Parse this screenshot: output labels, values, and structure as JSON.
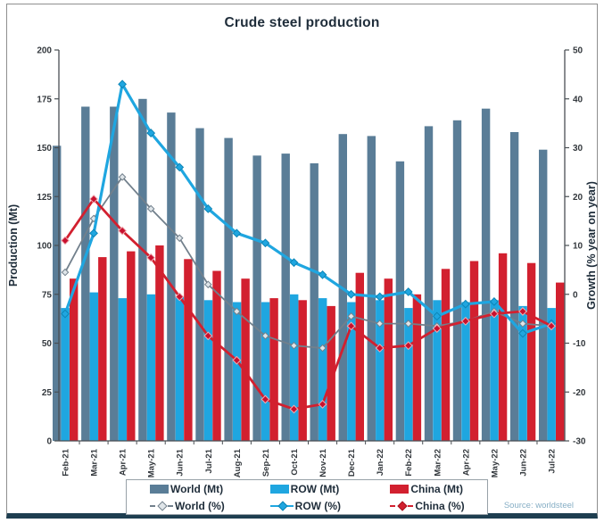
{
  "figure": {
    "title": "Crude steel production",
    "source": "Source: worldsteel"
  },
  "chart_data": {
    "type": "bar+line",
    "categories": [
      "Feb-21",
      "Mar-21",
      "Apr-21",
      "May-21",
      "Jun-21",
      "Jul-21",
      "Aug-21",
      "Sep-21",
      "Oct-21",
      "Nov-21",
      "Dec-21",
      "Jan-22",
      "Feb-22",
      "Mar-22",
      "Apr-22",
      "May-22",
      "Jun-22",
      "Jul-22"
    ],
    "bar_series": [
      {
        "name": "World (Mt)",
        "color": "#5a7d97",
        "axis": "left",
        "values": [
          151,
          171,
          171,
          175,
          168,
          160,
          155,
          146,
          147,
          142,
          157,
          156,
          143,
          161,
          164,
          170,
          158,
          149
        ]
      },
      {
        "name": "ROW (Mt)",
        "color": "#1fa6e0",
        "axis": "left",
        "values": [
          68,
          76,
          73,
          75,
          74,
          72,
          71,
          71,
          75,
          73,
          71,
          72,
          68,
          72,
          71,
          72,
          69,
          68
        ]
      },
      {
        "name": "China (Mt)",
        "color": "#d2202f",
        "axis": "left",
        "values": [
          83,
          94,
          97,
          100,
          93,
          87,
          83,
          73,
          72,
          69,
          86,
          83,
          75,
          88,
          92,
          96,
          91,
          81
        ]
      }
    ],
    "line_series": [
      {
        "name": "World (%)",
        "color": "#72808c",
        "marker_fill": "#dfe5e9",
        "axis": "right",
        "values": [
          4.5,
          15.5,
          24,
          17.5,
          11.5,
          2,
          -3.5,
          -8.5,
          -10.5,
          -11,
          -4.5,
          -6,
          -6,
          -6.5,
          -5.5,
          -3.5,
          -6,
          -6.5
        ]
      },
      {
        "name": "ROW (%)",
        "color": "#1fa6e0",
        "marker_fill": "#1fa6e0",
        "axis": "right",
        "values": [
          -4,
          12.5,
          43,
          33,
          26,
          17.5,
          12.5,
          10.5,
          6.5,
          4,
          0,
          -0.5,
          0.5,
          -4.5,
          -2,
          -1.5,
          -8,
          -6
        ]
      },
      {
        "name": "China (%)",
        "color": "#d2202f",
        "marker_fill": "#c8102e",
        "axis": "right",
        "values": [
          11,
          19.5,
          13,
          7.5,
          -0.5,
          -8.5,
          -13.5,
          -21.5,
          -23.5,
          -22.5,
          -6.5,
          -11,
          -10.5,
          -7,
          -5.5,
          -4,
          -3.5,
          -6.5
        ]
      }
    ],
    "left_axis": {
      "label": "Production (Mt)",
      "min": 0,
      "max": 200,
      "step": 25,
      "tick_labels": [
        "0",
        "25",
        "50",
        "75",
        "100",
        "125",
        "150",
        "175",
        "200"
      ]
    },
    "right_axis": {
      "label": "Growth (% year on year)",
      "min": -30,
      "max": 50,
      "step": 10,
      "tick_labels": [
        "-30",
        "-20",
        "-10",
        "0",
        "10",
        "20",
        "30",
        "40",
        "50"
      ]
    },
    "grid": false,
    "legend_position": "bottom"
  }
}
